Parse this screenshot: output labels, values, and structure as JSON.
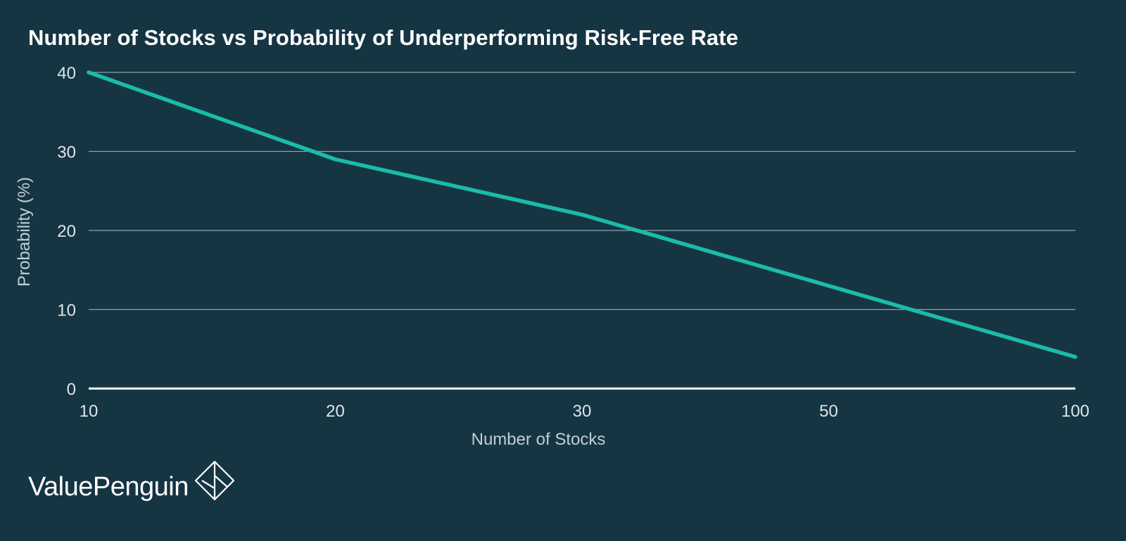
{
  "chart_data": {
    "type": "line",
    "title": "Number of Stocks vs Probability of Underperforming Risk-Free Rate",
    "xlabel": "Number of Stocks",
    "ylabel": "Probability (%)",
    "categories": [
      "10",
      "20",
      "30",
      "50",
      "100"
    ],
    "series": [
      {
        "values": [
          40,
          29,
          22,
          13,
          4
        ]
      }
    ],
    "ylim": [
      0,
      40
    ],
    "yticks": [
      "0",
      "10",
      "20",
      "30",
      "40"
    ],
    "grid": true,
    "legend": "none",
    "colors": {
      "background": "#163543",
      "line": "#1abcaa",
      "grid": "#8ea3ab",
      "baseline": "#ffffff"
    }
  },
  "branding": {
    "name": "ValuePenguin",
    "logo_icon": "diamond-penguin-logo-icon"
  }
}
